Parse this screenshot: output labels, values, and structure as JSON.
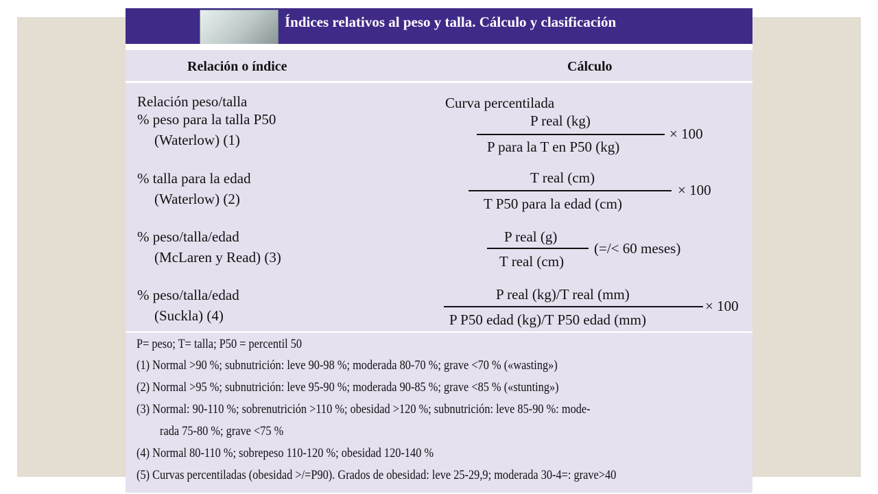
{
  "title": "Índices relativos al peso y talla. Cálculo y clasificación",
  "table": {
    "headers": [
      "Relación o índice",
      "Cálculo"
    ],
    "rows": [
      {
        "index_lines": [
          "Relación peso/talla",
          "% peso para la talla P50",
          "(Waterlow) (1)"
        ],
        "calc_caption": "Curva percentilada",
        "numerator": "P real (kg)",
        "denominator": "P para la T en P50 (kg)",
        "suffix": "× 100"
      },
      {
        "index_lines": [
          "% talla para la edad",
          "(Waterlow) (2)"
        ],
        "numerator": "T real (cm)",
        "denominator": "T P50 para la edad (cm)",
        "suffix": "× 100"
      },
      {
        "index_lines": [
          "% peso/talla/edad",
          "(McLaren y Read) (3)"
        ],
        "numerator": "P real (g)",
        "denominator": "T real (cm)",
        "suffix": "(=/< 60 meses)"
      },
      {
        "index_lines": [
          "% peso/talla/edad",
          "(Suckla) (4)"
        ],
        "numerator": "P real (kg)/T real (mm)",
        "denominator": "P P50 edad (kg)/T P50 edad (mm)",
        "suffix": "× 100"
      }
    ]
  },
  "footnotes": {
    "legend": "P= peso; T= talla; P50 = percentil 50",
    "notes": [
      "(1)  Normal >90 %; subnutrición: leve 90-98 %; moderada 80-70 %; grave <70 % («wasting»)",
      "(2)  Normal >95 %; subnutrición: leve 95-90 %; moderada 90-85 %; grave <85 % («stunting»)",
      "(3)  Normal: 90-110 %; sobrenutrición >110 %; obesidad >120 %; subnutrición: leve 85-90 %: mode-",
      "rada 75-80 %; grave <75 %",
      "(4)  Normal 80-110 %; sobrepeso 110-120 %; obesidad 120-140 %",
      "(5)  Curvas percentiladas (obesidad >/=P90). Grados de obesidad: leve 25-29,9; moderada 30-4=: grave>40"
    ]
  },
  "colors": {
    "title_bar": "#3f2a87",
    "table_bg": "#e6e0ee",
    "backdrop": "#e3ddd2"
  }
}
